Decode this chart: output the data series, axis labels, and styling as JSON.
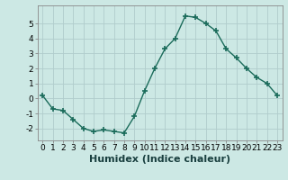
{
  "x": [
    0,
    1,
    2,
    3,
    4,
    5,
    6,
    7,
    8,
    9,
    10,
    11,
    12,
    13,
    14,
    15,
    16,
    17,
    18,
    19,
    20,
    21,
    22,
    23
  ],
  "y": [
    0.2,
    -0.7,
    -0.8,
    -1.4,
    -2.0,
    -2.2,
    -2.1,
    -2.2,
    -2.3,
    -1.2,
    0.5,
    2.0,
    3.3,
    4.0,
    5.5,
    5.4,
    5.0,
    4.5,
    3.3,
    2.7,
    2.0,
    1.4,
    1.0,
    0.2
  ],
  "line_color": "#1a6b5a",
  "marker": "+",
  "marker_size": 4,
  "bg_color": "#cce8e4",
  "grid_color": "#b0cccc",
  "xlabel": "Humidex (Indice chaleur)",
  "xlim": [
    -0.5,
    23.5
  ],
  "ylim": [
    -2.8,
    6.2
  ],
  "yticks": [
    -2,
    -1,
    0,
    1,
    2,
    3,
    4,
    5
  ],
  "xticks": [
    0,
    1,
    2,
    3,
    4,
    5,
    6,
    7,
    8,
    9,
    10,
    11,
    12,
    13,
    14,
    15,
    16,
    17,
    18,
    19,
    20,
    21,
    22,
    23
  ],
  "tick_fontsize": 6.5,
  "xlabel_fontsize": 8,
  "line_width": 1.0,
  "marker_size_val": 5
}
